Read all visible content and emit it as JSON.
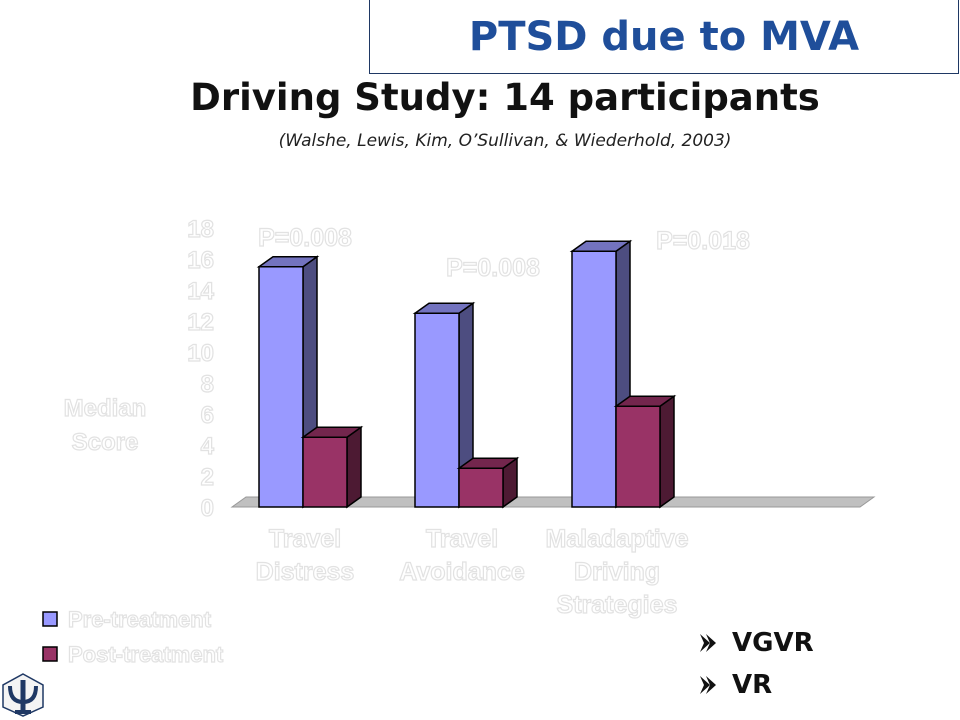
{
  "slide": {
    "title": "PTSD due to MVA",
    "heading": "Driving Study:  14 participants",
    "citation": "(Walshe, Lewis, Kim, O’Sullivan, & Wiederhold, 2003)"
  },
  "bullets": [
    {
      "label": "VGVR",
      "icon": "arrow-bullet-icon"
    },
    {
      "label": "VR",
      "icon": "arrow-bullet-icon"
    }
  ],
  "colors": {
    "pre": "#9999ff",
    "post": "#993366",
    "floor": "#c0c0c0",
    "title": "#1f4e9a"
  },
  "chart_data": {
    "type": "bar",
    "title": "",
    "ylabel_lines": [
      "Median",
      "Score"
    ],
    "ylim": [
      0,
      18
    ],
    "yticks": [
      "0",
      "2",
      "4",
      "6",
      "8",
      "10",
      "12",
      "14",
      "16",
      "18"
    ],
    "categories": [
      {
        "lines": [
          "Travel",
          "Distress"
        ]
      },
      {
        "lines": [
          "Travel",
          "Avoidance"
        ]
      },
      {
        "lines": [
          "Maladaptive",
          "Driving",
          "Strategies"
        ]
      }
    ],
    "series": [
      {
        "name": "Pre-treatment",
        "values": [
          15.5,
          12.5,
          16.5
        ]
      },
      {
        "name": "Post-treatment",
        "values": [
          4.5,
          2.5,
          6.5
        ]
      }
    ],
    "annotations": [
      "P=0.008",
      "P=0.008",
      "P=0.018"
    ],
    "legend_position": "bottom-left"
  }
}
